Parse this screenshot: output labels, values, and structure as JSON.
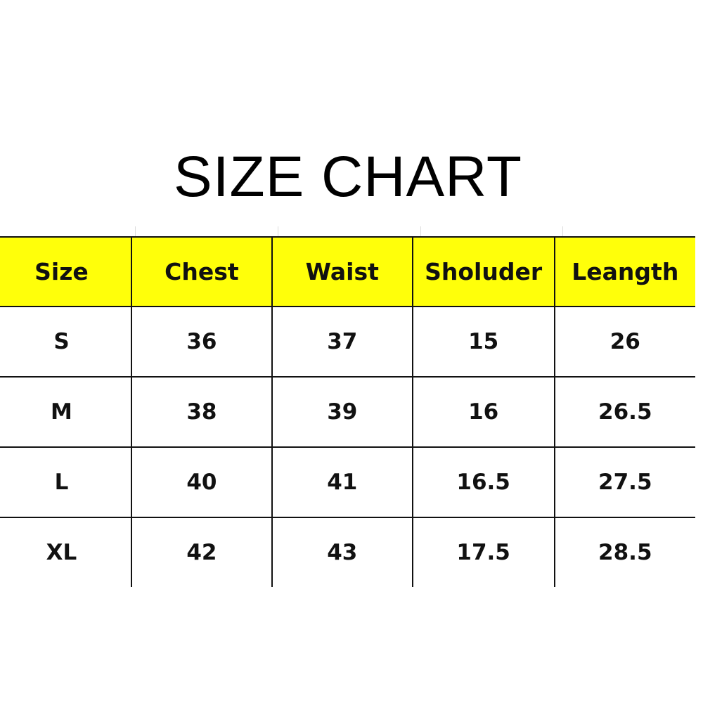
{
  "title": "SIZE CHART",
  "colors": {
    "header_background": "#ffff0a",
    "border": "#111111",
    "text": "#111111"
  },
  "chart_data": {
    "type": "table",
    "title": "SIZE CHART",
    "columns": [
      "Size",
      "Chest",
      "Waist",
      "Sholuder",
      "Leangth"
    ],
    "rows": [
      [
        "S",
        "36",
        "37",
        "15",
        "26"
      ],
      [
        "M",
        "38",
        "39",
        "16",
        "26.5"
      ],
      [
        "L",
        "40",
        "41",
        "16.5",
        "27.5"
      ],
      [
        "XL",
        "42",
        "43",
        "17.5",
        "28.5"
      ]
    ]
  }
}
